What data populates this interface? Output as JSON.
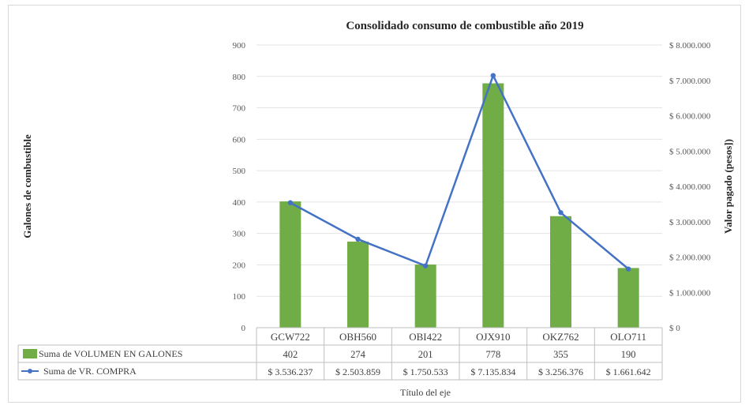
{
  "chart_data": {
    "type": "bar+line",
    "title": "Consolidado consumo de combustible año 2019",
    "xlabel": "Título del eje",
    "ylabel": "Galones de combustible",
    "y2label": "Valor pagado (pesos])",
    "categories": [
      "GCW722",
      "OBH560",
      "OBI422",
      "OJX910",
      "OKZ762",
      "OLO711"
    ],
    "ylim": [
      0,
      900
    ],
    "y_ticks": [
      "0",
      "100",
      "200",
      "300",
      "400",
      "500",
      "600",
      "700",
      "800",
      "900"
    ],
    "y2lim": [
      0,
      8000000
    ],
    "y2_ticks": [
      "$ 0",
      "$ 1.000.000",
      "$ 2.000.000",
      "$ 3.000.000",
      "$ 4.000.000",
      "$ 5.000.000",
      "$ 6.000.000",
      "$ 7.000.000",
      "$ 8.000.000"
    ],
    "grid": true,
    "legend": "data-table",
    "series": [
      {
        "name": "Suma de VOLUMEN EN GALONES",
        "kind": "bar",
        "axis": "left",
        "color": "#70ad47",
        "values": [
          402,
          274,
          201,
          778,
          355,
          190
        ],
        "labels": [
          "402",
          "274",
          "201",
          "778",
          "355",
          "190"
        ]
      },
      {
        "name": "Suma de VR. COMPRA",
        "kind": "line",
        "axis": "right",
        "color": "#4472c4",
        "values": [
          3536237,
          2503859,
          1750533,
          7135834,
          3256376,
          1661642
        ],
        "labels": [
          "$ 3.536.237",
          "$ 2.503.859",
          "$ 1.750.533",
          "$ 7.135.834",
          "$ 3.256.376",
          "$ 1.661.642"
        ]
      }
    ]
  }
}
